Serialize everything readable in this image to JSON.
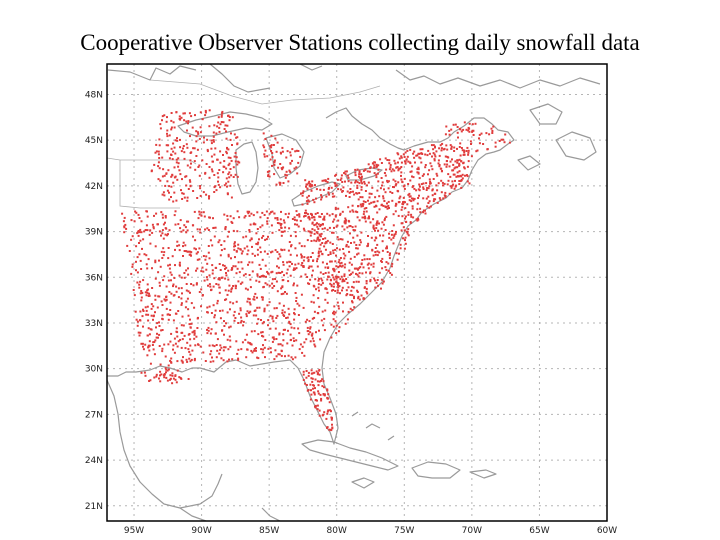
{
  "title": "Cooperative Observer Stations collecting daily snowfall data",
  "map": {
    "lon_range": [
      -97,
      -60
    ],
    "lat_range": [
      20,
      50
    ],
    "lat_ticks": [
      {
        "value": 48,
        "label": "48N"
      },
      {
        "value": 45,
        "label": "45N"
      },
      {
        "value": 42,
        "label": "42N"
      },
      {
        "value": 39,
        "label": "39N"
      },
      {
        "value": 36,
        "label": "36N"
      },
      {
        "value": 33,
        "label": "33N"
      },
      {
        "value": 30,
        "label": "30N"
      },
      {
        "value": 27,
        "label": "27N"
      },
      {
        "value": 24,
        "label": "24N"
      },
      {
        "value": 21,
        "label": "21N"
      }
    ],
    "lon_ticks": [
      {
        "value": -95,
        "label": "95W"
      },
      {
        "value": -90,
        "label": "90W"
      },
      {
        "value": -85,
        "label": "85W"
      },
      {
        "value": -80,
        "label": "80W"
      },
      {
        "value": -75,
        "label": "75W"
      },
      {
        "value": -70,
        "label": "70W"
      },
      {
        "value": -65,
        "label": "65W"
      },
      {
        "value": -60,
        "label": "60W"
      }
    ],
    "colors": {
      "station_marker": "#e03c3c",
      "coastline": "#9a9a9a",
      "gridline": "#b5b5b5",
      "frame": "#000000"
    },
    "station_markers": "dense red dots across the eastern United States"
  }
}
